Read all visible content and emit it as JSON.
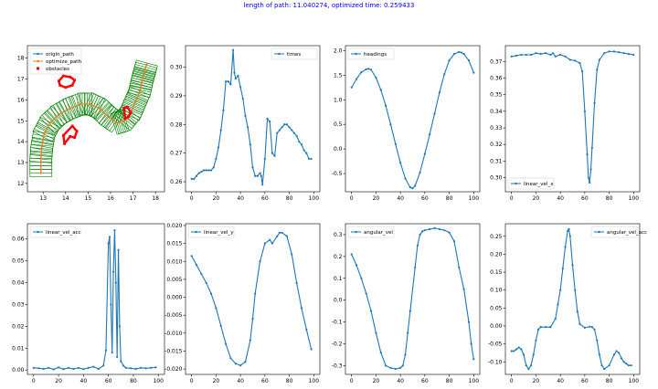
{
  "figure_title": "length of path: 11.040274, optimized time: 0.259433",
  "colors": {
    "series": "#1f77b4",
    "origin": "#1f77b4",
    "optimize": "#ff7f0e",
    "obstacles": "#ff0000",
    "corridor": "#008000",
    "title": "#0000ff"
  },
  "chart_data": [
    {
      "type": "line",
      "title": "",
      "legend": [
        "origin_path",
        "optimize_path",
        "obstacles"
      ],
      "legend_loc": "upper-left",
      "xlim": [
        12.3,
        18.4
      ],
      "ylim": [
        11.6,
        18.6
      ],
      "xticks": [
        13,
        14,
        15,
        16,
        17,
        18
      ],
      "yticks": [
        12,
        13,
        14,
        15,
        16,
        17,
        18
      ],
      "series": [
        {
          "name": "origin_path",
          "x": [
            12.9,
            12.9,
            12.95,
            13.05,
            13.3,
            13.7,
            14.2,
            14.7,
            15.1,
            15.5,
            15.9,
            16.3,
            16.6,
            16.9,
            17.1,
            17.3,
            17.4,
            17.5,
            17.6
          ],
          "y": [
            12.5,
            13.2,
            13.8,
            14.4,
            14.9,
            15.3,
            15.6,
            15.8,
            15.8,
            15.6,
            15.2,
            14.9,
            15.0,
            15.4,
            15.9,
            16.4,
            16.9,
            17.3,
            17.7
          ]
        },
        {
          "name": "optimize_path",
          "x": [
            12.9,
            12.9,
            12.95,
            13.05,
            13.3,
            13.7,
            14.2,
            14.7,
            15.1,
            15.5,
            15.9,
            16.3,
            16.6,
            16.9,
            17.1,
            17.3,
            17.4,
            17.5,
            17.6
          ],
          "y": [
            12.5,
            13.2,
            13.8,
            14.4,
            14.9,
            15.3,
            15.6,
            15.8,
            15.8,
            15.6,
            15.2,
            14.9,
            15.0,
            15.4,
            15.9,
            16.4,
            16.9,
            17.3,
            17.7
          ]
        }
      ],
      "obstacles": [
        {
          "x": [
            13.7,
            13.9,
            14.2,
            14.4,
            14.3,
            14.0,
            13.75,
            13.7
          ],
          "y": [
            16.9,
            17.15,
            17.1,
            16.95,
            16.7,
            16.6,
            16.7,
            16.9
          ]
        },
        {
          "x": [
            13.9,
            14.3,
            14.5,
            14.4,
            14.2,
            13.95,
            13.9
          ],
          "y": [
            14.3,
            14.75,
            14.5,
            14.2,
            14.25,
            13.9,
            14.3
          ]
        },
        {
          "x": [
            16.6,
            16.75,
            16.9,
            16.8,
            16.65,
            16.6
          ],
          "y": [
            15.6,
            15.65,
            15.4,
            15.2,
            15.1,
            15.6
          ]
        }
      ]
    },
    {
      "type": "line",
      "title": "",
      "legend": [
        "times"
      ],
      "legend_loc": "upper-right",
      "xlim": [
        -5,
        105
      ],
      "ylim": [
        0.2565,
        0.3075
      ],
      "xticks": [
        0,
        20,
        40,
        60,
        80,
        100
      ],
      "yticks": [
        0.26,
        0.27,
        0.28,
        0.29,
        0.3
      ],
      "series": [
        {
          "name": "times",
          "x": [
            0,
            2,
            4,
            6,
            8,
            10,
            12,
            14,
            16,
            18,
            20,
            22,
            24,
            26,
            28,
            30,
            32,
            34,
            35,
            36,
            38,
            40,
            42,
            44,
            46,
            48,
            50,
            52,
            54,
            56,
            57,
            58,
            60,
            62,
            64,
            66,
            68,
            70,
            72,
            74,
            76,
            78,
            80,
            82,
            84,
            86,
            88,
            90,
            92,
            94,
            96,
            98
          ],
          "y": [
            0.261,
            0.261,
            0.262,
            0.263,
            0.2635,
            0.264,
            0.264,
            0.264,
            0.264,
            0.265,
            0.268,
            0.272,
            0.278,
            0.285,
            0.295,
            0.295,
            0.294,
            0.306,
            0.298,
            0.296,
            0.297,
            0.293,
            0.289,
            0.283,
            0.279,
            0.273,
            0.265,
            0.262,
            0.262,
            0.263,
            0.262,
            0.259,
            0.268,
            0.282,
            0.281,
            0.27,
            0.269,
            0.277,
            0.278,
            0.279,
            0.28,
            0.28,
            0.279,
            0.278,
            0.277,
            0.276,
            0.274,
            0.273,
            0.271,
            0.27,
            0.268,
            0.268
          ]
        }
      ]
    },
    {
      "type": "line",
      "title": "",
      "legend": [
        "headings"
      ],
      "legend_loc": "upper-left",
      "xlim": [
        -5,
        105
      ],
      "ylim": [
        -0.87,
        2.1
      ],
      "xticks": [
        0,
        20,
        40,
        60,
        80,
        100
      ],
      "yticks": [
        -0.5,
        0.0,
        0.5,
        1.0,
        1.5,
        2.0
      ],
      "series": [
        {
          "name": "headings",
          "x": [
            0,
            4,
            8,
            12,
            14,
            16,
            20,
            24,
            28,
            32,
            36,
            40,
            44,
            48,
            50,
            52,
            56,
            60,
            64,
            68,
            72,
            76,
            80,
            84,
            88,
            90,
            92,
            96,
            100
          ],
          "y": [
            1.25,
            1.42,
            1.56,
            1.62,
            1.63,
            1.61,
            1.45,
            1.2,
            0.88,
            0.5,
            0.1,
            -0.28,
            -0.6,
            -0.78,
            -0.8,
            -0.75,
            -0.48,
            -0.1,
            0.3,
            0.72,
            1.15,
            1.52,
            1.8,
            1.93,
            1.97,
            1.96,
            1.93,
            1.8,
            1.55
          ]
        }
      ]
    },
    {
      "type": "line",
      "title": "",
      "legend": [
        "linear_vel_x"
      ],
      "legend_loc": "lower-left",
      "xlim": [
        -5,
        105
      ],
      "ylim": [
        0.2915,
        0.3795
      ],
      "xticks": [
        0,
        20,
        40,
        60,
        80,
        100
      ],
      "yticks": [
        0.3,
        0.31,
        0.32,
        0.33,
        0.34,
        0.35,
        0.36,
        0.37
      ],
      "series": [
        {
          "name": "linear_vel_x",
          "x": [
            0,
            4,
            8,
            12,
            16,
            20,
            24,
            28,
            32,
            34,
            36,
            40,
            44,
            48,
            52,
            56,
            58,
            60,
            62,
            63,
            64,
            65,
            66,
            68,
            70,
            72,
            76,
            80,
            84,
            88,
            92,
            96,
            100
          ],
          "y": [
            0.373,
            0.3735,
            0.374,
            0.374,
            0.374,
            0.375,
            0.3745,
            0.375,
            0.374,
            0.375,
            0.373,
            0.374,
            0.373,
            0.371,
            0.3705,
            0.369,
            0.364,
            0.34,
            0.314,
            0.3,
            0.297,
            0.305,
            0.318,
            0.345,
            0.365,
            0.371,
            0.375,
            0.376,
            0.376,
            0.3755,
            0.375,
            0.3745,
            0.374
          ]
        }
      ]
    },
    {
      "type": "line",
      "title": "",
      "legend": [
        "linear_vel_acc"
      ],
      "legend_loc": "upper-left",
      "xlim": [
        -5,
        105
      ],
      "ylim": [
        -0.002,
        0.067
      ],
      "xticks": [
        0,
        20,
        40,
        60,
        80,
        100
      ],
      "yticks": [
        0.0,
        0.01,
        0.02,
        0.03,
        0.04,
        0.05,
        0.06
      ],
      "series": [
        {
          "name": "linear_vel_acc",
          "x": [
            0,
            4,
            8,
            12,
            16,
            20,
            24,
            28,
            32,
            36,
            40,
            44,
            48,
            52,
            56,
            58,
            60,
            61,
            62,
            63,
            64,
            65,
            66,
            67,
            68,
            69,
            70,
            72,
            74,
            78,
            82,
            86,
            90,
            94,
            98
          ],
          "y": [
            0.001,
            0.0008,
            0.0005,
            0.001,
            0.0003,
            0.0012,
            0.0004,
            0.001,
            0.0005,
            0.001,
            0.0004,
            0.001,
            0.0015,
            0.0005,
            0.002,
            0.009,
            0.058,
            0.061,
            0.03,
            0.008,
            0.045,
            0.064,
            0.04,
            0.006,
            0.055,
            0.02,
            0.004,
            0.002,
            0.001,
            0.0008,
            0.0005,
            0.001,
            0.0008,
            0.001,
            0.0012
          ]
        }
      ]
    },
    {
      "type": "line",
      "title": "",
      "legend": [
        "linear_vel_y"
      ],
      "legend_loc": "upper-left",
      "xlim": [
        -5,
        105
      ],
      "ylim": [
        -0.0215,
        0.0205
      ],
      "xticks": [
        0,
        20,
        40,
        60,
        80,
        100
      ],
      "yticks": [
        -0.02,
        -0.015,
        -0.01,
        -0.005,
        0.0,
        0.005,
        0.01,
        0.015,
        0.02
      ],
      "series": [
        {
          "name": "linear_vel_y",
          "x": [
            0,
            4,
            8,
            12,
            16,
            20,
            24,
            28,
            32,
            36,
            40,
            44,
            48,
            50,
            52,
            56,
            60,
            64,
            66,
            70,
            72,
            74,
            78,
            82,
            86,
            90,
            94,
            98
          ],
          "y": [
            0.0115,
            0.009,
            0.0065,
            0.004,
            0.001,
            -0.003,
            -0.008,
            -0.013,
            -0.017,
            -0.0185,
            -0.019,
            -0.018,
            -0.012,
            -0.006,
            0.001,
            0.01,
            0.015,
            0.016,
            0.015,
            0.017,
            0.018,
            0.018,
            0.017,
            0.012,
            0.004,
            -0.003,
            -0.009,
            -0.0145
          ]
        }
      ]
    },
    {
      "type": "line",
      "title": "",
      "legend": [
        "angular_vel"
      ],
      "legend_loc": "upper-left",
      "xlim": [
        -5,
        105
      ],
      "ylim": [
        -0.34,
        0.35
      ],
      "xticks": [
        0,
        20,
        40,
        60,
        80,
        100
      ],
      "yticks": [
        -0.3,
        -0.2,
        -0.1,
        0.0,
        0.1,
        0.2,
        0.3
      ],
      "series": [
        {
          "name": "angular_vel",
          "x": [
            0,
            4,
            8,
            12,
            16,
            20,
            24,
            28,
            32,
            36,
            40,
            42,
            44,
            46,
            48,
            52,
            54,
            56,
            58,
            60,
            64,
            68,
            72,
            76,
            80,
            84,
            88,
            92,
            96,
            98,
            100
          ],
          "y": [
            0.21,
            0.16,
            0.1,
            0.03,
            -0.05,
            -0.15,
            -0.24,
            -0.3,
            -0.31,
            -0.315,
            -0.31,
            -0.3,
            -0.25,
            -0.15,
            -0.05,
            0.15,
            0.25,
            0.3,
            0.315,
            0.32,
            0.325,
            0.33,
            0.325,
            0.32,
            0.31,
            0.27,
            0.15,
            0.05,
            -0.1,
            -0.2,
            -0.27
          ]
        }
      ]
    },
    {
      "type": "line",
      "title": "",
      "legend": [
        "angular_vel_acc"
      ],
      "legend_loc": "upper-right",
      "xlim": [
        -5,
        105
      ],
      "ylim": [
        -0.135,
        0.285
      ],
      "xticks": [
        0,
        20,
        40,
        60,
        80,
        100
      ],
      "yticks": [
        -0.1,
        -0.05,
        0.0,
        0.05,
        0.1,
        0.15,
        0.2,
        0.25
      ],
      "series": [
        {
          "name": "angular_vel_acc",
          "x": [
            0,
            2,
            4,
            6,
            8,
            10,
            12,
            14,
            16,
            18,
            20,
            22,
            24,
            28,
            32,
            36,
            38,
            40,
            42,
            44,
            46,
            47,
            48,
            50,
            52,
            54,
            56,
            60,
            64,
            66,
            68,
            70,
            72,
            74,
            76,
            80,
            84,
            86,
            88,
            90,
            92,
            94,
            96,
            98
          ],
          "y": [
            -0.07,
            -0.07,
            -0.065,
            -0.06,
            -0.065,
            -0.08,
            -0.11,
            -0.12,
            -0.11,
            -0.08,
            -0.04,
            -0.01,
            -0.003,
            -0.003,
            -0.003,
            0.02,
            0.06,
            0.1,
            0.16,
            0.22,
            0.265,
            0.27,
            0.25,
            0.17,
            0.1,
            0.04,
            0.005,
            -0.005,
            -0.002,
            -0.003,
            -0.01,
            -0.04,
            -0.08,
            -0.11,
            -0.12,
            -0.11,
            -0.08,
            -0.07,
            -0.075,
            -0.09,
            -0.1,
            -0.105,
            -0.11,
            -0.11
          ]
        }
      ]
    }
  ]
}
